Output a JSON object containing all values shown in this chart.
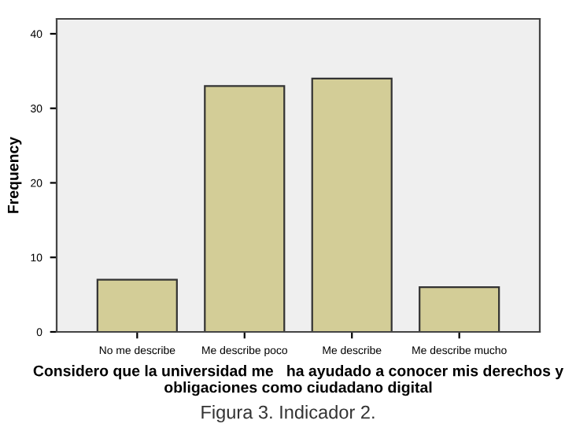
{
  "chart_data": {
    "type": "bar",
    "xlabel": "Considero que la universidad me   ha ayudado a conocer mis derechos y obligaciones como ciudadano digital",
    "ylabel": "Frequency",
    "categories": [
      "No me describe",
      "Me describe poco",
      "Me describe",
      "Me describe mucho"
    ],
    "values": [
      7,
      33,
      34,
      6
    ],
    "color": "#d3cd97",
    "ylim": [
      0,
      42
    ],
    "yticks": [
      0,
      10,
      20,
      30,
      40
    ],
    "grid": false,
    "annotations": [
      "Figura 3. Indicador 2."
    ]
  }
}
